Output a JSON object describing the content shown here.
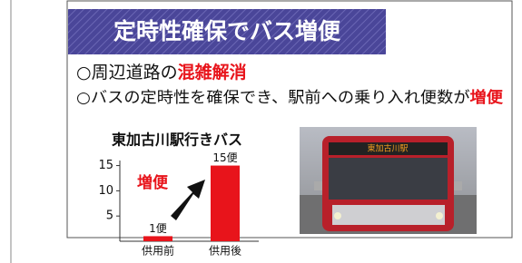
{
  "banner": {
    "title": "定時性確保でバス増便"
  },
  "points": [
    {
      "text": "○周辺道路の",
      "highlight": "混雑解消"
    },
    {
      "text": "○バスの定時性を確保でき、駅前への乗り入れ便数が",
      "highlight": "増便"
    }
  ],
  "chart": {
    "type": "bar",
    "title": "東加古川駅行きバス",
    "categories": [
      "供用前",
      "供用後"
    ],
    "values": [
      1,
      15
    ],
    "value_labels": [
      "1便",
      "15便"
    ],
    "color": "#e8141b",
    "ylim": [
      0,
      16
    ],
    "yticks": [
      5,
      10,
      15
    ],
    "annotation": "増便"
  }
}
